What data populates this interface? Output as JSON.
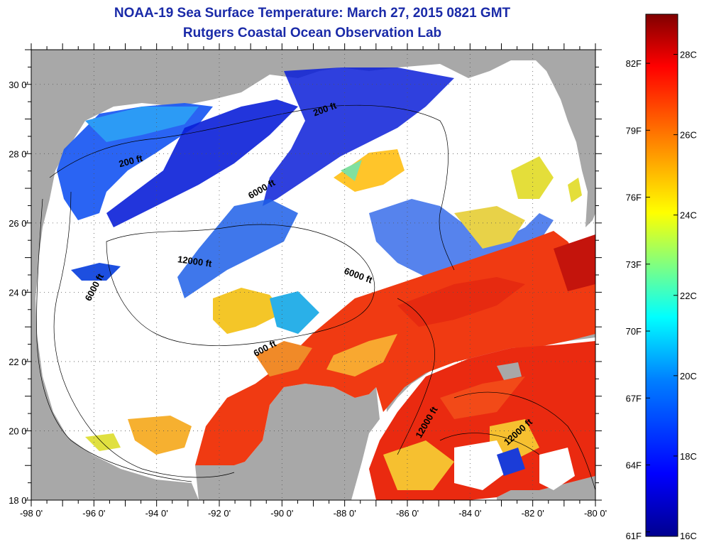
{
  "title": "NOAA-19 Sea Surface Temperature:  March 27, 2015 0821 GMT",
  "subtitle": "Rutgers Coastal Ocean Observation Lab",
  "map": {
    "lon_range": [
      -98,
      -80
    ],
    "lat_range": [
      18,
      31
    ],
    "lon_ticks": [
      "-98 0'",
      "-96 0'",
      "-94 0'",
      "-92 0'",
      "-90 0'",
      "-88 0'",
      "-86 0'",
      "-84 0'",
      "-82 0'",
      "-80 0'"
    ],
    "lat_ticks": [
      "18 0'",
      "20 0'",
      "22 0'",
      "24 0'",
      "26 0'",
      "28 0'",
      "30 0'"
    ],
    "grid": "dotted",
    "land_color": "#a8a8a8",
    "cloud_color": "#ffffff",
    "contour_labels": [
      {
        "text": "200 ft",
        "lon": -94.8,
        "lat": 27.7,
        "angle": -15
      },
      {
        "text": "200 ft",
        "lon": -88.6,
        "lat": 29.2,
        "angle": -20
      },
      {
        "text": "6000 ft",
        "lon": -90.6,
        "lat": 26.9,
        "angle": -30
      },
      {
        "text": "12000 ft",
        "lon": -92.8,
        "lat": 24.8,
        "angle": 8
      },
      {
        "text": "6000 ft",
        "lon": -95.9,
        "lat": 24.1,
        "angle": -62
      },
      {
        "text": "6000 ft",
        "lon": -87.6,
        "lat": 24.4,
        "angle": 20
      },
      {
        "text": "600 ft",
        "lon": -90.5,
        "lat": 22.3,
        "angle": -28
      },
      {
        "text": "12000 ft",
        "lon": -85.3,
        "lat": 20.2,
        "angle": -60
      },
      {
        "text": "12000 ft",
        "lon": -82.4,
        "lat": 19.9,
        "angle": -42
      }
    ]
  },
  "colorbar": {
    "range_c": [
      16,
      29
    ],
    "f_labels": [
      "61F",
      "64F",
      "67F",
      "70F",
      "73F",
      "76F",
      "79F",
      "82F"
    ],
    "c_labels": [
      "16C",
      "18C",
      "20C",
      "22C",
      "24C",
      "26C",
      "28C"
    ],
    "colors": [
      "#00008f",
      "#0000ff",
      "#0080ff",
      "#00ffff",
      "#80ff80",
      "#ffff00",
      "#ff8000",
      "#ff0000",
      "#800000"
    ]
  }
}
